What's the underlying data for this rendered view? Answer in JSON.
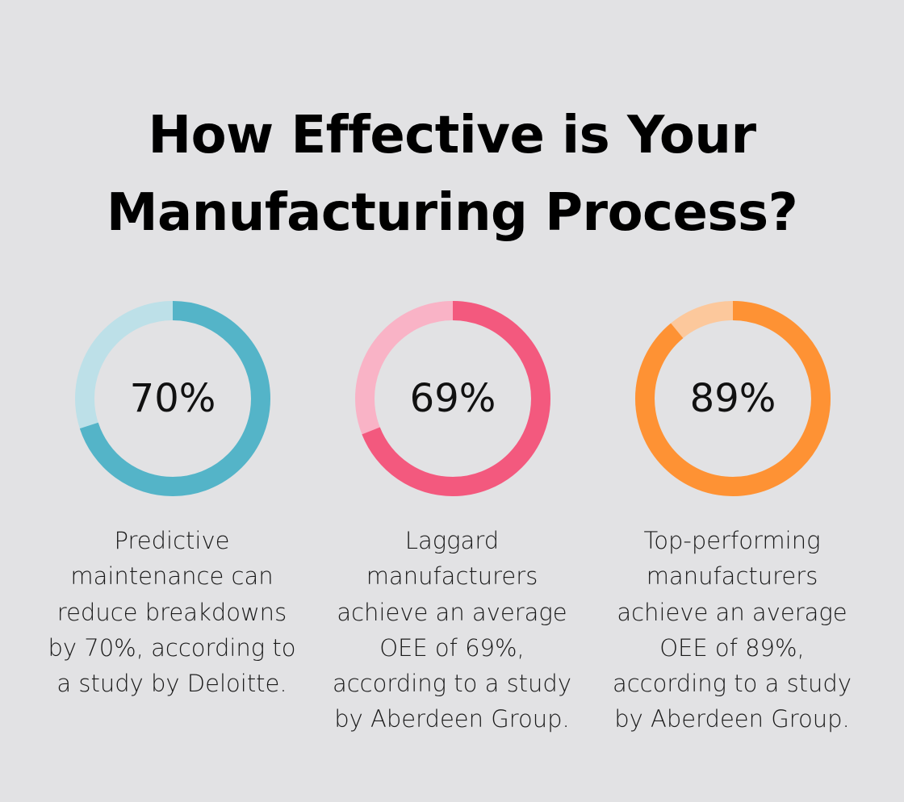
{
  "title": {
    "line1": "How Effective is Your",
    "line2": "Manufacturing Process?"
  },
  "chart_data": [
    {
      "type": "donut",
      "value_percent": 70,
      "label": "70%",
      "colors": {
        "fill": "#54b4c8",
        "track": "#bde0e8"
      },
      "description_lines": [
        "Predictive",
        "maintenance can",
        "reduce breakdowns",
        "by 70%, according to",
        "a study by Deloitte."
      ]
    },
    {
      "type": "donut",
      "value_percent": 69,
      "label": "69%",
      "colors": {
        "fill": "#f3597e",
        "track": "#f9b3c6"
      },
      "description_lines": [
        "Laggard",
        "manufacturers",
        "achieve an average",
        "OEE of 69%,",
        "according to a study",
        "by Aberdeen Group."
      ]
    },
    {
      "type": "donut",
      "value_percent": 89,
      "label": "89%",
      "colors": {
        "fill": "#fe9234",
        "track": "#fcc89c"
      },
      "description_lines": [
        "Top-performing",
        "manufacturers",
        "achieve an average",
        "OEE of 89%,",
        "according to a study",
        "by Aberdeen Group."
      ]
    }
  ]
}
